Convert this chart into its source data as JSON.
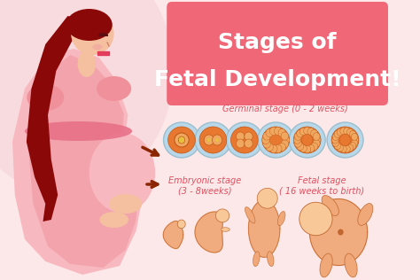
{
  "bg_color": "#fce8e8",
  "title_box_color": "#f06878",
  "title_line1": "Stages of",
  "title_line2": "Fetal Development!",
  "title_text_color": "#ffffff",
  "germinal_label": "Germinal stage (0 - 2 weeks)",
  "germinal_label_color": "#e05060",
  "embryonic_label": "Embryonic stage\n(3 - 8weeks)",
  "embryonic_label_color": "#e05060",
  "fetal_label": "Fetal stage\n( 16 weeks to birth)",
  "fetal_label_color": "#e05060",
  "cell_dish_color": "#b8d8ea",
  "cell_dish_edge": "#9abfcf",
  "cell_orange": "#e87830",
  "cell_orange_light": "#f0a860",
  "cell_orange_dark": "#c05818",
  "arrow_color": "#8B2500",
  "woman_skin": "#f5c0a0",
  "woman_dress": "#f0909a",
  "woman_dress_light": "#f8b8c0",
  "woman_belt": "#e87088",
  "woman_hair": "#8B0808",
  "woman_hair_dark": "#600000",
  "embryo_body": "#f0a878",
  "embryo_dark": "#c06830",
  "embryo_light": "#f8c898",
  "bg_curve_color": "#f8d0d0"
}
